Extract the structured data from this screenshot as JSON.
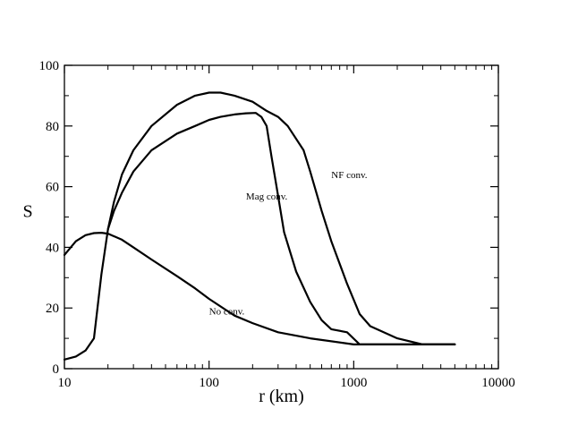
{
  "chart_data": {
    "type": "line",
    "title": "",
    "xlabel": "r  (km)",
    "ylabel": "S",
    "xscale": "log",
    "xlim": [
      10,
      10000
    ],
    "ylim": [
      0,
      100
    ],
    "xticks": [
      10,
      100,
      1000,
      10000
    ],
    "xtick_labels": [
      "10",
      "100",
      "1000",
      "10000"
    ],
    "yticks": [
      0,
      20,
      40,
      60,
      80,
      100
    ],
    "ytick_labels": [
      "0",
      "20",
      "40",
      "60",
      "80",
      "100"
    ],
    "grid": false,
    "legend": "none",
    "series": [
      {
        "name": "NF conv.",
        "x": [
          10,
          12,
          14,
          16,
          18,
          20,
          22,
          25,
          30,
          40,
          60,
          80,
          100,
          120,
          150,
          200,
          250,
          300,
          350,
          450,
          500,
          600,
          700,
          900,
          1100,
          1300,
          2000,
          3000,
          5000
        ],
        "y": [
          3,
          4,
          6,
          10,
          31,
          46,
          55,
          64,
          72,
          80,
          87,
          90,
          91,
          91,
          90,
          88,
          85,
          83,
          80,
          72,
          65,
          52,
          42,
          28,
          18,
          14,
          10,
          8,
          8
        ]
      },
      {
        "name": "Mag conv.",
        "x": [
          20,
          22,
          25,
          30,
          40,
          60,
          80,
          100,
          120,
          150,
          180,
          210,
          230,
          250,
          270,
          300,
          330,
          400,
          500,
          600,
          700,
          900,
          1100,
          2000,
          5000
        ],
        "y": [
          46,
          52,
          58,
          65,
          72,
          77.5,
          80,
          82,
          83,
          83.8,
          84.2,
          84.3,
          83,
          80,
          70,
          57,
          45,
          32,
          22,
          16,
          13,
          12,
          8,
          8,
          8
        ]
      },
      {
        "name": "No conv.",
        "x": [
          10,
          12,
          14,
          16,
          18,
          20,
          25,
          30,
          40,
          60,
          80,
          100,
          150,
          200,
          300,
          500,
          1000,
          2000,
          5000
        ],
        "y": [
          37.5,
          42,
          44,
          44.7,
          44.8,
          44.5,
          42.5,
          40,
          36,
          30.5,
          26.5,
          23,
          17.5,
          15,
          12,
          10,
          8,
          8,
          8
        ]
      }
    ],
    "annotations": [
      {
        "text": "NF conv.",
        "x": 700,
        "y": 64
      },
      {
        "text": "Mag conv.",
        "x": 180,
        "y": 57
      },
      {
        "text": "No conv.",
        "x": 100,
        "y": 19
      }
    ]
  }
}
